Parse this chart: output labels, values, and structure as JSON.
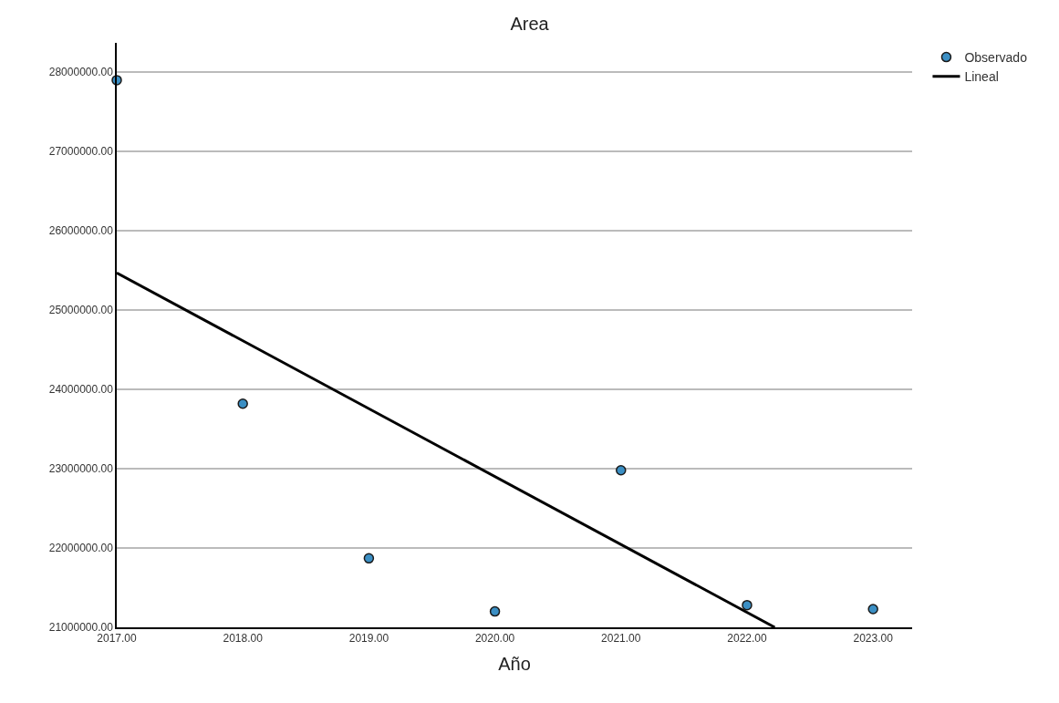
{
  "chart_data": {
    "type": "scatter",
    "title": "Area",
    "xlabel": "Año",
    "xlim": [
      2017,
      2023.31
    ],
    "ylim": [
      21000000,
      28370000
    ],
    "xticks": [
      {
        "value": 2017,
        "label": "2017.00"
      },
      {
        "value": 2018,
        "label": "2018.00"
      },
      {
        "value": 2019,
        "label": "2019.00"
      },
      {
        "value": 2020,
        "label": "2020.00"
      },
      {
        "value": 2021,
        "label": "2021.00"
      },
      {
        "value": 2022,
        "label": "2022.00"
      },
      {
        "value": 2023,
        "label": "2023.00"
      }
    ],
    "yticks": [
      {
        "value": 21000000,
        "label": "21000000.00"
      },
      {
        "value": 22000000,
        "label": "22000000.00"
      },
      {
        "value": 23000000,
        "label": "23000000.00"
      },
      {
        "value": 24000000,
        "label": "24000000.00"
      },
      {
        "value": 25000000,
        "label": "25000000.00"
      },
      {
        "value": 26000000,
        "label": "26000000.00"
      },
      {
        "value": 27000000,
        "label": "27000000.00"
      },
      {
        "value": 28000000,
        "label": "28000000.00"
      }
    ],
    "grid": "y",
    "legend": "top right",
    "x": [
      2017,
      2018,
      2019,
      2020,
      2021,
      2022,
      2023
    ],
    "series": [
      {
        "name": "Observado",
        "marker": "circle",
        "color": "#3b8fc4",
        "values": [
          27900000,
          23820000,
          21870000,
          21200000,
          22980000,
          21280000,
          21230000
        ]
      },
      {
        "name": "Lineal",
        "type": "line",
        "marker": "none",
        "color": "#000000",
        "x": [
          2017,
          2022.22
        ],
        "values": [
          25470000,
          21000000
        ]
      }
    ]
  }
}
